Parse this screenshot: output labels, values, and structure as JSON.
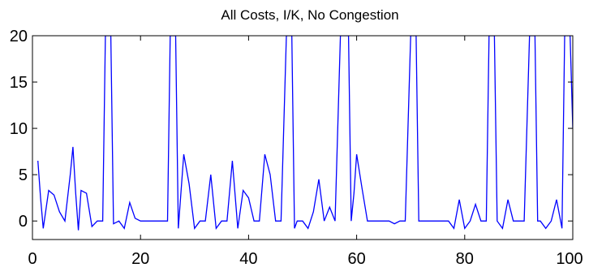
{
  "chart_data": {
    "type": "line",
    "title": "All Costs, I/K, No Congestion",
    "xlabel": "",
    "ylabel": "",
    "xlim": [
      0,
      100
    ],
    "ylim": [
      -2,
      20
    ],
    "xticks": [
      0,
      20,
      40,
      60,
      80,
      100
    ],
    "yticks": [
      0,
      5,
      10,
      15,
      20
    ],
    "grid": false,
    "line_color": "#0000ff",
    "series": [
      {
        "x": [
          1,
          1.5,
          2,
          3,
          4,
          5,
          6,
          7,
          7.5,
          8,
          8.5,
          9,
          10,
          11,
          12,
          13,
          13.5,
          14,
          14.5,
          15,
          16,
          17,
          18,
          19,
          20,
          21,
          22,
          23,
          24,
          25,
          25.5,
          26,
          26.5,
          27,
          28,
          29,
          30,
          31,
          32,
          33,
          34,
          35,
          36,
          37,
          38,
          39,
          40,
          41,
          42,
          43,
          44,
          45,
          46,
          47,
          47.5,
          48,
          48.5,
          49,
          50,
          51,
          52,
          53,
          54,
          55,
          56,
          57,
          58,
          58.5,
          59,
          59.5,
          60,
          61,
          62,
          63,
          64,
          65,
          66,
          67,
          68,
          69,
          70,
          70.5,
          71,
          71.5,
          72,
          73,
          74,
          75,
          76,
          77,
          78,
          79,
          80,
          81,
          82,
          83,
          84,
          84.5,
          85,
          85.5,
          86,
          87,
          88,
          89,
          90,
          91,
          92,
          92.5,
          93,
          93.5,
          94,
          95,
          96,
          97,
          98,
          98.5,
          99,
          99.5,
          100
        ],
        "y": [
          6.5,
          2.5,
          -0.8,
          3.3,
          2.8,
          1.0,
          0.0,
          5.0,
          8.0,
          3.0,
          -1.0,
          3.3,
          3.0,
          -0.6,
          0.0,
          0.0,
          20,
          20,
          20,
          -0.3,
          0.0,
          -0.8,
          2.0,
          0.3,
          0.0,
          0.0,
          0.0,
          0.0,
          0.0,
          0.0,
          20,
          20,
          20,
          -0.8,
          7.2,
          4.0,
          -0.8,
          0.0,
          0.0,
          5.0,
          -0.8,
          0.0,
          0.0,
          6.5,
          -0.8,
          3.3,
          2.5,
          0.0,
          0.0,
          7.2,
          5.0,
          0.0,
          0.0,
          20,
          20,
          20,
          -0.8,
          0.0,
          0.0,
          -0.8,
          1.0,
          4.5,
          0.0,
          1.5,
          0.0,
          20,
          20,
          20,
          0.0,
          3.0,
          7.2,
          3.5,
          0.0,
          0.0,
          0.0,
          0.0,
          0.0,
          -0.3,
          0.0,
          0.0,
          20,
          20,
          20,
          0.0,
          0.0,
          0.0,
          0.0,
          0.0,
          0.0,
          0.0,
          -0.8,
          2.3,
          -0.8,
          0.0,
          1.8,
          0.0,
          0.0,
          20,
          20,
          20,
          0.0,
          -0.8,
          2.3,
          0.0,
          0.0,
          0.0,
          20,
          20,
          20,
          0.0,
          0.0,
          -0.8,
          0.0,
          2.3,
          -0.8,
          20,
          20,
          20,
          10.0
        ]
      }
    ]
  }
}
